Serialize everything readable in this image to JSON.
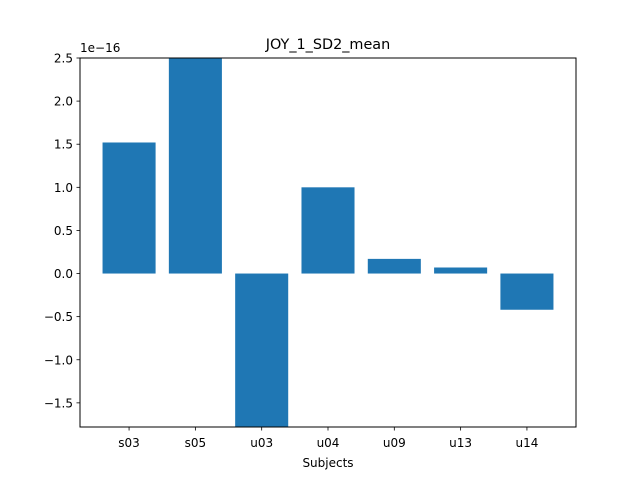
{
  "chart_data": {
    "type": "bar",
    "title": "JOY_1_SD2_mean",
    "xlabel": "Subjects",
    "ylabel": "",
    "y_offset_label": "1e−16",
    "y_scale": 1e-16,
    "categories": [
      "s03",
      "s05",
      "u03",
      "u04",
      "u09",
      "u13",
      "u14"
    ],
    "values": [
      1.52,
      2.55,
      -1.82,
      1.0,
      0.17,
      0.07,
      -0.42
    ],
    "ylim": [
      -1.78,
      2.5
    ],
    "yticks": [
      -1.5,
      -1.0,
      -0.5,
      0.0,
      0.5,
      1.0,
      1.5,
      2.0,
      2.5
    ],
    "ytick_labels": [
      "−1.5",
      "−1.0",
      "−0.5",
      "0.0",
      "0.5",
      "1.0",
      "1.5",
      "2.0",
      "2.5"
    ],
    "bar_color": "#1f77b4",
    "grid": false
  }
}
